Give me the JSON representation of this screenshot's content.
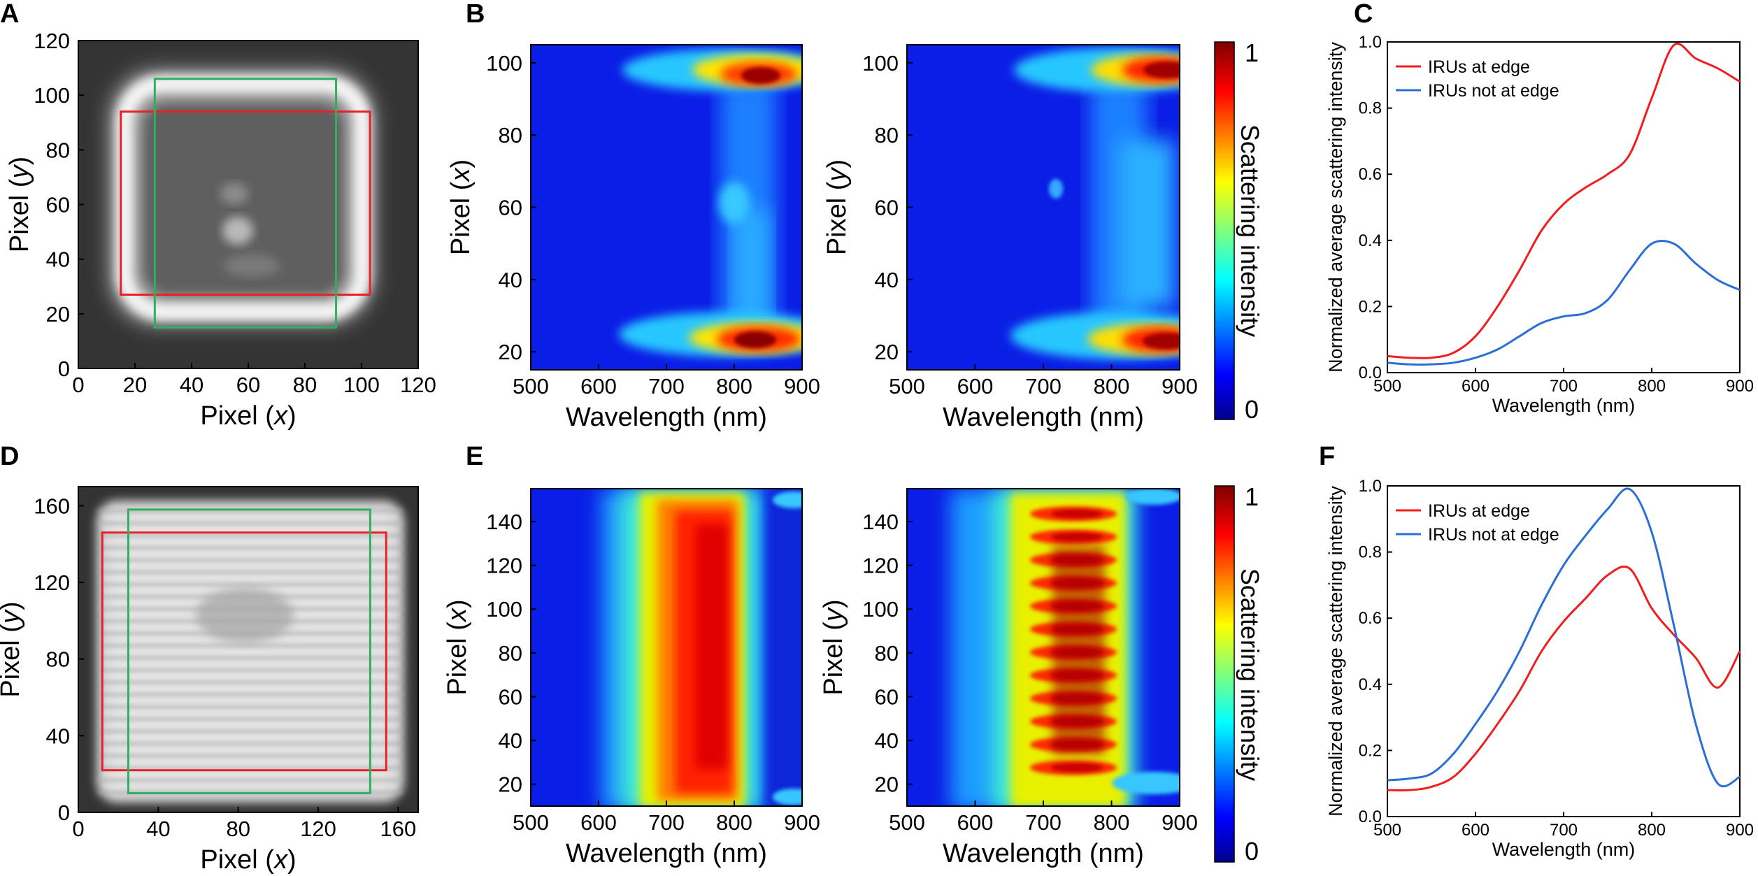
{
  "panel_letters": [
    "A",
    "B",
    "C",
    "D",
    "E",
    "F"
  ],
  "colorbar": {
    "label": "Scattering intensity",
    "tick_min": "0",
    "tick_max": "1"
  },
  "chart_data": [
    {
      "panel": "A",
      "type": "image",
      "xlabel": "Pixel (x)",
      "ylabel": "Pixel (y)",
      "xlim": [
        0,
        120
      ],
      "ylim": [
        0,
        120
      ],
      "xticks": [
        "0",
        "20",
        "40",
        "60",
        "80",
        "100",
        "120"
      ],
      "yticks": [
        "0",
        "20",
        "40",
        "60",
        "80",
        "100",
        "120"
      ],
      "overlays": [
        {
          "color": "#e8202a",
          "x": [
            15,
            103
          ],
          "y": [
            27,
            94
          ]
        },
        {
          "color": "#2fb060",
          "x": [
            27,
            91
          ],
          "y": [
            15,
            106
          ]
        }
      ]
    },
    {
      "panel": "B-left",
      "type": "heatmap",
      "xlabel": "Wavelength (nm)",
      "ylabel": "Pixel (x)",
      "xlim": [
        500,
        900
      ],
      "ylim": [
        15,
        105
      ],
      "xticks": [
        "500",
        "600",
        "700",
        "800",
        "900"
      ],
      "yticks": [
        "20",
        "40",
        "60",
        "80",
        "100"
      ]
    },
    {
      "panel": "B-right",
      "type": "heatmap",
      "xlabel": "Wavelength (nm)",
      "ylabel": "Pixel (y)",
      "xlim": [
        500,
        900
      ],
      "ylim": [
        15,
        105
      ],
      "xticks": [
        "500",
        "600",
        "700",
        "800",
        "900"
      ],
      "yticks": [
        "20",
        "40",
        "60",
        "80",
        "100"
      ]
    },
    {
      "panel": "C",
      "type": "line",
      "xlabel": "Wavelength (nm)",
      "ylabel": "Normalized average scattering intensity",
      "xlim": [
        500,
        900
      ],
      "ylim": [
        0,
        1.0
      ],
      "xticks": [
        "500",
        "600",
        "700",
        "800",
        "900"
      ],
      "yticks": [
        "0.0",
        "0.2",
        "0.4",
        "0.6",
        "0.8",
        "1.0"
      ],
      "x": [
        500,
        525,
        550,
        575,
        600,
        625,
        650,
        675,
        700,
        725,
        750,
        775,
        800,
        825,
        850,
        875,
        900
      ],
      "series": [
        {
          "name": "IRUs at edge",
          "color": "#f01e1e",
          "values": [
            0.05,
            0.045,
            0.045,
            0.06,
            0.11,
            0.2,
            0.31,
            0.43,
            0.51,
            0.56,
            0.6,
            0.66,
            0.83,
            0.99,
            0.95,
            0.92,
            0.88
          ]
        },
        {
          "name": "IRUs not at edge",
          "color": "#2a6fd6",
          "values": [
            0.03,
            0.025,
            0.025,
            0.03,
            0.045,
            0.07,
            0.11,
            0.15,
            0.17,
            0.18,
            0.22,
            0.31,
            0.39,
            0.39,
            0.33,
            0.28,
            0.25
          ]
        }
      ]
    },
    {
      "panel": "D",
      "type": "image",
      "xlabel": "Pixel (x)",
      "ylabel": "Pixel (y)",
      "xlim": [
        0,
        170
      ],
      "ylim": [
        0,
        170
      ],
      "xticks": [
        "0",
        "40",
        "80",
        "120",
        "160"
      ],
      "yticks": [
        "0",
        "40",
        "80",
        "120",
        "160"
      ],
      "overlays": [
        {
          "color": "#e8202a",
          "x": [
            12,
            154
          ],
          "y": [
            22,
            146
          ]
        },
        {
          "color": "#2fb060",
          "x": [
            25,
            146
          ],
          "y": [
            10,
            158
          ]
        }
      ]
    },
    {
      "panel": "E-left",
      "type": "heatmap",
      "xlabel": "Wavelength (nm)",
      "ylabel": "Pixel (x)",
      "xlim": [
        500,
        900
      ],
      "ylim": [
        10,
        155
      ],
      "xticks": [
        "500",
        "600",
        "700",
        "800",
        "900"
      ],
      "yticks": [
        "20",
        "40",
        "60",
        "80",
        "100",
        "120",
        "140"
      ]
    },
    {
      "panel": "E-right",
      "type": "heatmap",
      "xlabel": "Wavelength (nm)",
      "ylabel": "Pixel (y)",
      "xlim": [
        500,
        900
      ],
      "ylim": [
        10,
        155
      ],
      "xticks": [
        "500",
        "600",
        "700",
        "800",
        "900"
      ],
      "yticks": [
        "20",
        "40",
        "60",
        "80",
        "100",
        "120",
        "140"
      ]
    },
    {
      "panel": "F",
      "type": "line",
      "xlabel": "Wavelength (nm)",
      "ylabel": "Normalized average scattering intensity",
      "xlim": [
        500,
        900
      ],
      "ylim": [
        0,
        1.0
      ],
      "xticks": [
        "500",
        "600",
        "700",
        "800",
        "900"
      ],
      "yticks": [
        "0.0",
        "0.2",
        "0.4",
        "0.6",
        "0.8",
        "1.0"
      ],
      "x": [
        500,
        525,
        550,
        575,
        600,
        625,
        650,
        675,
        700,
        725,
        750,
        775,
        800,
        825,
        850,
        875,
        900
      ],
      "series": [
        {
          "name": "IRUs at edge",
          "color": "#f01e1e",
          "values": [
            0.08,
            0.08,
            0.09,
            0.12,
            0.19,
            0.28,
            0.38,
            0.5,
            0.59,
            0.66,
            0.73,
            0.75,
            0.63,
            0.55,
            0.48,
            0.39,
            0.5
          ]
        },
        {
          "name": "IRUs not at edge",
          "color": "#2a6fd6",
          "values": [
            0.11,
            0.115,
            0.13,
            0.19,
            0.28,
            0.38,
            0.5,
            0.64,
            0.76,
            0.85,
            0.93,
            0.99,
            0.86,
            0.58,
            0.28,
            0.1,
            0.12
          ]
        }
      ]
    }
  ]
}
